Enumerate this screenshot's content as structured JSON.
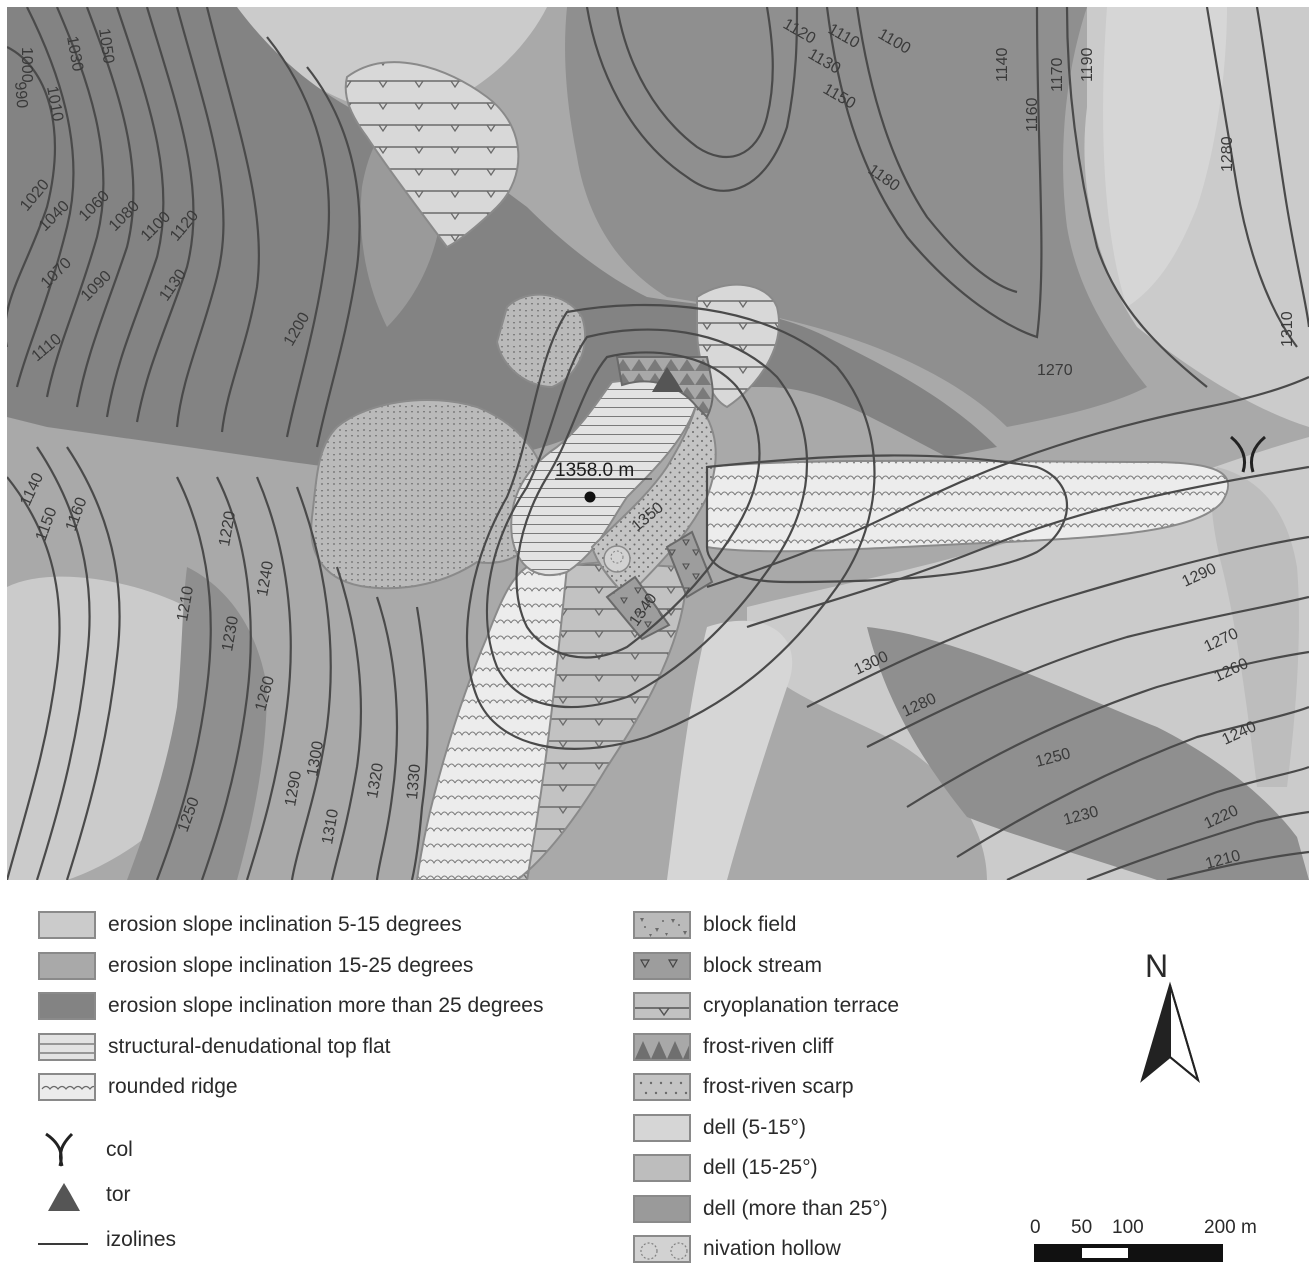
{
  "map": {
    "summit_label": "1358.0 m",
    "contour_labels": [
      "1000",
      "1030",
      "1050",
      "990",
      "1010",
      "1020",
      "1040",
      "1060",
      "1080",
      "1100",
      "1120",
      "1070",
      "1090",
      "1130",
      "1110",
      "1200",
      "1120",
      "1110",
      "1100",
      "1130",
      "1150",
      "1180",
      "1140",
      "1160",
      "1170",
      "1190",
      "1280",
      "1310",
      "1270",
      "1350",
      "1340",
      "1290",
      "1300",
      "1280",
      "1270",
      "1260",
      "1250",
      "1240",
      "1230",
      "1220",
      "1210",
      "1140",
      "1150",
      "1160",
      "1220",
      "1210",
      "1240",
      "1230",
      "1260",
      "1290",
      "1300",
      "1310",
      "1320",
      "1330",
      "1250"
    ],
    "colors": {
      "slope_5_15": "#cbcbcb",
      "slope_15_25": "#a9a9a9",
      "slope_25_plus": "#838383",
      "top_flat": "#e3e3e3",
      "rounded_ridge": "#ececec",
      "dell_5_15": "#d6d6d6",
      "dell_15_25": "#bdbdbd",
      "dell_25_plus": "#9a9a9a",
      "contour": "#4a4a4a"
    }
  },
  "legend": {
    "col1": [
      {
        "label": "erosion slope inclination 5-15 degrees",
        "swatch": "slope-5-15"
      },
      {
        "label": "erosion slope inclination 15-25 degrees",
        "swatch": "slope-15-25"
      },
      {
        "label": "erosion slope inclination more than 25 degrees",
        "swatch": "slope-25"
      },
      {
        "label": "structural-denudational top flat",
        "swatch": "top-flat"
      },
      {
        "label": "rounded ridge",
        "swatch": "rounded-ridge"
      }
    ],
    "symbols": [
      {
        "label": "col",
        "icon": "col-icon"
      },
      {
        "label": "tor",
        "icon": "tor-icon"
      },
      {
        "label": "izolines",
        "icon": "izoline-icon"
      }
    ],
    "col2": [
      {
        "label": "block field",
        "swatch": "block-field"
      },
      {
        "label": "block stream",
        "swatch": "block-stream"
      },
      {
        "label": "cryoplanation terrace",
        "swatch": "cryoplanation-terrace"
      },
      {
        "label": "frost-riven cliff",
        "swatch": "frost-riven-cliff"
      },
      {
        "label": "frost-riven scarp",
        "swatch": "frost-riven-scarp"
      },
      {
        "label": "dell (5-15°)",
        "swatch": "dell-5-15"
      },
      {
        "label": "dell (15-25°)",
        "swatch": "dell-15-25"
      },
      {
        "label": "dell (more than 25°)",
        "swatch": "dell-25"
      },
      {
        "label": "nivation hollow",
        "swatch": "nivation-hollow"
      }
    ]
  },
  "north_arrow": {
    "label": "N",
    "icon": "north-arrow-icon"
  },
  "scale_bar": {
    "ticks": [
      "0",
      "50",
      "100",
      "200 m"
    ]
  }
}
